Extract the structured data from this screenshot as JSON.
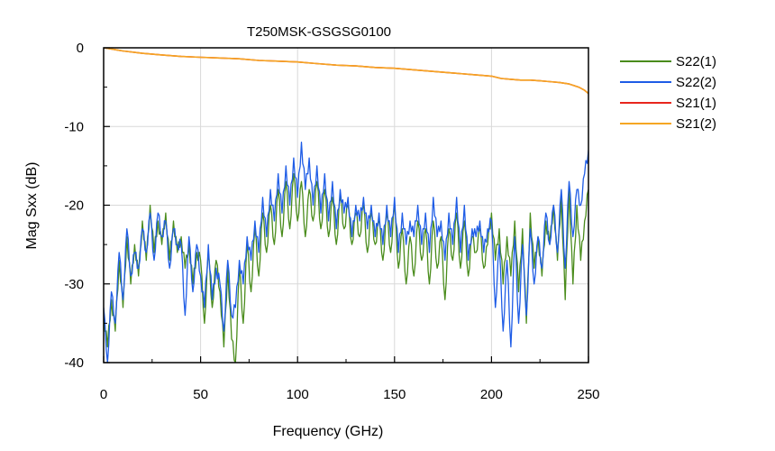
{
  "chart_data": {
    "type": "line",
    "title": "T250MSK-GSGSG0100",
    "xlabel": "Frequency (GHz)",
    "ylabel": "Mag Sxx (dB)",
    "xlim": [
      0,
      250
    ],
    "ylim": [
      -40,
      0
    ],
    "xticks": [
      0,
      50,
      100,
      150,
      200,
      250
    ],
    "yticks": [
      0,
      -10,
      -20,
      -30,
      -40
    ],
    "grid": true,
    "legend_position": "right",
    "series": [
      {
        "name": "S22(1)",
        "color": "#4a8c1c",
        "x": [
          0,
          2,
          4,
          6,
          8,
          10,
          12,
          14,
          16,
          18,
          20,
          22,
          24,
          26,
          28,
          30,
          32,
          34,
          36,
          38,
          40,
          42,
          44,
          46,
          48,
          50,
          52,
          54,
          56,
          58,
          60,
          62,
          64,
          66,
          68,
          70,
          72,
          74,
          76,
          78,
          80,
          82,
          84,
          86,
          88,
          90,
          92,
          94,
          96,
          98,
          100,
          102,
          104,
          106,
          108,
          110,
          112,
          114,
          116,
          118,
          120,
          122,
          124,
          126,
          128,
          130,
          132,
          134,
          136,
          138,
          140,
          142,
          144,
          146,
          148,
          150,
          152,
          154,
          156,
          158,
          160,
          162,
          164,
          166,
          168,
          170,
          172,
          174,
          176,
          178,
          180,
          182,
          184,
          186,
          188,
          190,
          192,
          194,
          196,
          198,
          200,
          202,
          204,
          206,
          208,
          210,
          212,
          214,
          216,
          218,
          220,
          222,
          224,
          226,
          228,
          230,
          232,
          234,
          236,
          238,
          240,
          242,
          244,
          246,
          248,
          250
        ],
        "values": [
          -34,
          -38,
          -32,
          -36,
          -27,
          -33,
          -24,
          -30,
          -25,
          -29,
          -22,
          -27,
          -20,
          -26,
          -22,
          -25,
          -21,
          -27,
          -22,
          -26,
          -24,
          -28,
          -25,
          -30,
          -26,
          -27,
          -35,
          -26,
          -33,
          -27,
          -31,
          -38,
          -28,
          -37,
          -40,
          -28,
          -35,
          -25,
          -31,
          -23,
          -29,
          -21,
          -26,
          -20,
          -25,
          -18,
          -24,
          -17,
          -23,
          -16,
          -22,
          -17,
          -24,
          -18,
          -22,
          -17,
          -23,
          -18,
          -24,
          -19,
          -25,
          -19,
          -23,
          -20,
          -25,
          -21,
          -24,
          -20,
          -26,
          -21,
          -25,
          -22,
          -27,
          -21,
          -26,
          -20,
          -28,
          -23,
          -30,
          -24,
          -29,
          -22,
          -27,
          -23,
          -30,
          -22,
          -28,
          -24,
          -32,
          -23,
          -27,
          -21,
          -28,
          -22,
          -29,
          -24,
          -26,
          -23,
          -28,
          -25,
          -21,
          -27,
          -23,
          -30,
          -24,
          -29,
          -22,
          -31,
          -23,
          -35,
          -21,
          -28,
          -24,
          -29,
          -22,
          -25,
          -20,
          -27,
          -19,
          -32,
          -18,
          -30,
          -20,
          -27,
          -22,
          -18
        ],
        "smooth": false
      },
      {
        "name": "S22(2)",
        "color": "#1e5ce6",
        "x": [
          0,
          2,
          4,
          6,
          8,
          10,
          12,
          14,
          16,
          18,
          20,
          22,
          24,
          26,
          28,
          30,
          32,
          34,
          36,
          38,
          40,
          42,
          44,
          46,
          48,
          50,
          52,
          54,
          56,
          58,
          60,
          62,
          64,
          66,
          68,
          70,
          72,
          74,
          76,
          78,
          80,
          82,
          84,
          86,
          88,
          90,
          92,
          94,
          96,
          98,
          100,
          102,
          104,
          106,
          108,
          110,
          112,
          114,
          116,
          118,
          120,
          122,
          124,
          126,
          128,
          130,
          132,
          134,
          136,
          138,
          140,
          142,
          144,
          146,
          148,
          150,
          152,
          154,
          156,
          158,
          160,
          162,
          164,
          166,
          168,
          170,
          172,
          174,
          176,
          178,
          180,
          182,
          184,
          186,
          188,
          190,
          192,
          194,
          196,
          198,
          200,
          202,
          204,
          206,
          208,
          210,
          212,
          214,
          216,
          218,
          220,
          222,
          224,
          226,
          228,
          230,
          232,
          234,
          236,
          238,
          240,
          242,
          244,
          246,
          248,
          250
        ],
        "values": [
          -33,
          -40,
          -31,
          -35,
          -26,
          -32,
          -23,
          -29,
          -26,
          -28,
          -23,
          -26,
          -21,
          -27,
          -21,
          -24,
          -22,
          -28,
          -23,
          -25,
          -25,
          -34,
          -24,
          -31,
          -25,
          -29,
          -33,
          -25,
          -32,
          -28,
          -30,
          -36,
          -27,
          -34,
          -33,
          -27,
          -30,
          -24,
          -27,
          -22,
          -26,
          -19,
          -24,
          -18,
          -22,
          -16,
          -21,
          -15,
          -20,
          -14,
          -19,
          -12,
          -18,
          -14,
          -20,
          -15,
          -21,
          -16,
          -22,
          -17,
          -23,
          -18,
          -21,
          -19,
          -24,
          -20,
          -22,
          -19,
          -23,
          -20,
          -24,
          -21,
          -25,
          -20,
          -24,
          -19,
          -26,
          -21,
          -25,
          -22,
          -24,
          -20,
          -25,
          -21,
          -26,
          -19,
          -24,
          -22,
          -27,
          -21,
          -25,
          -19,
          -26,
          -20,
          -27,
          -23,
          -24,
          -22,
          -26,
          -23,
          -22,
          -33,
          -25,
          -36,
          -27,
          -38,
          -24,
          -35,
          -25,
          -34,
          -23,
          -30,
          -24,
          -28,
          -21,
          -25,
          -20,
          -26,
          -18,
          -28,
          -17,
          -24,
          -18,
          -20,
          -16,
          -13
        ],
        "smooth": false
      },
      {
        "name": "S21(1)",
        "color": "#e8261e",
        "x": [
          0,
          10,
          20,
          30,
          40,
          50,
          60,
          70,
          80,
          90,
          100,
          110,
          120,
          130,
          140,
          150,
          160,
          170,
          180,
          190,
          200,
          205,
          210,
          215,
          220,
          225,
          230,
          235,
          240,
          245,
          248,
          250
        ],
        "values": [
          0,
          -0.4,
          -0.7,
          -0.9,
          -1.1,
          -1.2,
          -1.3,
          -1.4,
          -1.6,
          -1.7,
          -1.8,
          -2.0,
          -2.2,
          -2.3,
          -2.5,
          -2.6,
          -2.8,
          -3.0,
          -3.2,
          -3.4,
          -3.6,
          -3.9,
          -4.0,
          -4.1,
          -4.1,
          -4.2,
          -4.3,
          -4.4,
          -4.6,
          -5.0,
          -5.4,
          -5.8
        ],
        "smooth": true
      },
      {
        "name": "S21(2)",
        "color": "#f5a623",
        "x": [
          0,
          10,
          20,
          30,
          40,
          50,
          60,
          70,
          80,
          90,
          100,
          110,
          120,
          130,
          140,
          150,
          160,
          170,
          180,
          190,
          200,
          205,
          210,
          215,
          220,
          225,
          230,
          235,
          240,
          245,
          248,
          250
        ],
        "values": [
          0,
          -0.4,
          -0.7,
          -0.9,
          -1.1,
          -1.2,
          -1.3,
          -1.4,
          -1.6,
          -1.7,
          -1.8,
          -2.0,
          -2.2,
          -2.3,
          -2.5,
          -2.6,
          -2.8,
          -3.0,
          -3.2,
          -3.4,
          -3.6,
          -3.9,
          -4.0,
          -4.1,
          -4.1,
          -4.2,
          -4.3,
          -4.4,
          -4.6,
          -5.0,
          -5.4,
          -5.8
        ],
        "smooth": true
      }
    ]
  }
}
